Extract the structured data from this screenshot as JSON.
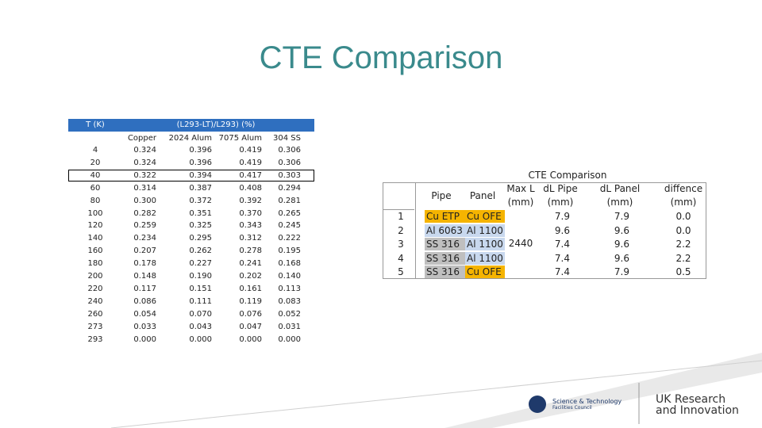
{
  "title": "CTE Comparison",
  "left_table": {
    "header": {
      "t": "T (K)",
      "group": "(L293-LT)/L293) (%)"
    },
    "columns": [
      "Copper",
      "2024 Alum",
      "7075 Alum",
      "304 SS"
    ],
    "highlight_row": 2,
    "rows": [
      [
        "4",
        "0.324",
        "0.396",
        "0.419",
        "0.306"
      ],
      [
        "20",
        "0.324",
        "0.396",
        "0.419",
        "0.306"
      ],
      [
        "40",
        "0.322",
        "0.394",
        "0.417",
        "0.303"
      ],
      [
        "60",
        "0.314",
        "0.387",
        "0.408",
        "0.294"
      ],
      [
        "80",
        "0.300",
        "0.372",
        "0.392",
        "0.281"
      ],
      [
        "100",
        "0.282",
        "0.351",
        "0.370",
        "0.265"
      ],
      [
        "120",
        "0.259",
        "0.325",
        "0.343",
        "0.245"
      ],
      [
        "140",
        "0.234",
        "0.295",
        "0.312",
        "0.222"
      ],
      [
        "160",
        "0.207",
        "0.262",
        "0.278",
        "0.195"
      ],
      [
        "180",
        "0.178",
        "0.227",
        "0.241",
        "0.168"
      ],
      [
        "200",
        "0.148",
        "0.190",
        "0.202",
        "0.140"
      ],
      [
        "220",
        "0.117",
        "0.151",
        "0.161",
        "0.113"
      ],
      [
        "240",
        "0.086",
        "0.111",
        "0.119",
        "0.083"
      ],
      [
        "260",
        "0.054",
        "0.070",
        "0.076",
        "0.052"
      ],
      [
        "273",
        "0.033",
        "0.043",
        "0.047",
        "0.031"
      ],
      [
        "293",
        "0.000",
        "0.000",
        "0.000",
        "0.000"
      ]
    ]
  },
  "right_table": {
    "caption": "CTE Comparison",
    "headers": {
      "pipe": "Pipe",
      "panel": "Panel",
      "max_l": "Max L (mm)",
      "dl_pipe": "dL Pipe (mm)",
      "dl_panel": "dL Panel (mm)",
      "diff": "diffence (mm)"
    },
    "max_l": "2440",
    "rows": [
      {
        "index": "1",
        "pipe": {
          "text": "Cu ETP",
          "color": "#f5b400"
        },
        "panel": {
          "text": "Cu OFE",
          "color": "#f5b400"
        },
        "dl_pipe": "7.9",
        "dl_panel": "7.9",
        "diff": "0.0"
      },
      {
        "index": "2",
        "pipe": {
          "text": "Al 6063",
          "color": "#c8d8ee"
        },
        "panel": {
          "text": "Al 1100",
          "color": "#c8d8ee"
        },
        "dl_pipe": "9.6",
        "dl_panel": "9.6",
        "diff": "0.0"
      },
      {
        "index": "3",
        "pipe": {
          "text": "SS 316",
          "color": "#bfbfbf"
        },
        "panel": {
          "text": "Al 1100",
          "color": "#c8d8ee"
        },
        "dl_pipe": "7.4",
        "dl_panel": "9.6",
        "diff": "2.2"
      },
      {
        "index": "4",
        "pipe": {
          "text": "SS 316",
          "color": "#bfbfbf"
        },
        "panel": {
          "text": "Al 1100",
          "color": "#c8d8ee"
        },
        "dl_pipe": "7.4",
        "dl_panel": "9.6",
        "diff": "2.2"
      },
      {
        "index": "5",
        "pipe": {
          "text": "SS 316",
          "color": "#bfbfbf"
        },
        "panel": {
          "text": "Cu OFE",
          "color": "#f5b400"
        },
        "dl_pipe": "7.4",
        "dl_panel": "7.9",
        "diff": "0.5"
      }
    ]
  },
  "footer": {
    "stfc_1": "Science & Technology",
    "stfc_2": "Facilities Council",
    "ukri_1": "UK Research",
    "ukri_2": "and Innovation"
  }
}
